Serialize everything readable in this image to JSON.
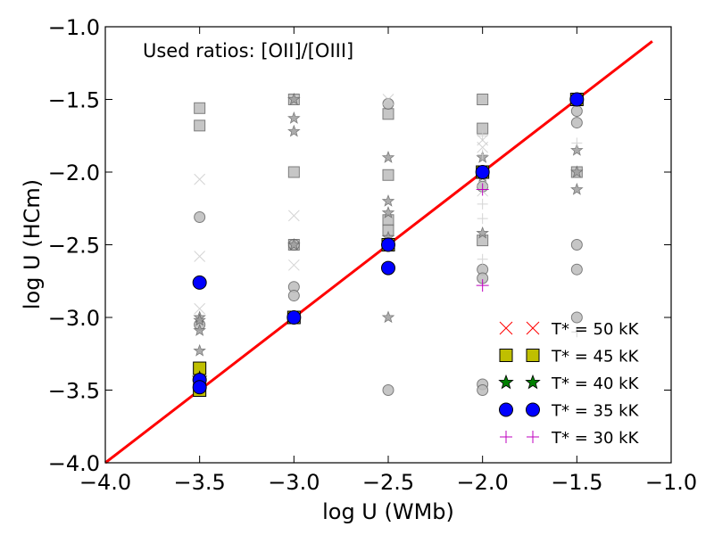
{
  "chart_data": {
    "type": "scatter",
    "xlabel": "log U (WMb)",
    "ylabel": "log U (HCm)",
    "xlim": [
      -4.0,
      -1.0
    ],
    "ylim": [
      -4.0,
      -1.0
    ],
    "xticks": [
      "−4.0",
      "−3.5",
      "−3.0",
      "−2.5",
      "−2.0",
      "−1.5",
      "−1.0"
    ],
    "yticks": [
      "−1.0",
      "−1.5",
      "−2.0",
      "−2.5",
      "−3.0",
      "−3.5",
      "−4.0"
    ],
    "annotation": "Used ratios: [OII]/[OIII]",
    "identity_line": {
      "x": [
        -4.0,
        -1.1
      ],
      "y": [
        -4.0,
        -1.1
      ],
      "color": "#ff0000"
    },
    "background_points": [
      {
        "marker": "square",
        "color": "#bdbdbd",
        "points": [
          [
            -3.5,
            -1.56
          ],
          [
            -3.5,
            -1.68
          ],
          [
            -3.0,
            -1.5
          ],
          [
            -3.0,
            -2.0
          ],
          [
            -3.0,
            -2.5
          ],
          [
            -2.5,
            -1.6
          ],
          [
            -2.5,
            -2.02
          ],
          [
            -2.5,
            -2.33
          ],
          [
            -2.5,
            -2.4
          ],
          [
            -2.0,
            -1.5
          ],
          [
            -2.0,
            -1.7
          ],
          [
            -2.0,
            -2.0
          ],
          [
            -2.0,
            -2.47
          ],
          [
            -1.5,
            -2.0
          ],
          [
            -3.5,
            -3.5
          ]
        ]
      },
      {
        "marker": "circle",
        "color": "#bdbdbd",
        "points": [
          [
            -3.5,
            -2.31
          ],
          [
            -3.5,
            -3.05
          ],
          [
            -3.0,
            -2.5
          ],
          [
            -3.0,
            -2.79
          ],
          [
            -3.0,
            -2.85
          ],
          [
            -2.5,
            -1.53
          ],
          [
            -2.5,
            -3.5
          ],
          [
            -2.0,
            -2.1
          ],
          [
            -2.0,
            -2.67
          ],
          [
            -2.0,
            -2.73
          ],
          [
            -2.0,
            -3.46
          ],
          [
            -2.0,
            -3.5
          ],
          [
            -1.5,
            -1.58
          ],
          [
            -1.5,
            -1.66
          ],
          [
            -1.5,
            -2.5
          ],
          [
            -1.5,
            -2.67
          ],
          [
            -1.5,
            -3.0
          ]
        ]
      },
      {
        "marker": "star",
        "color": "#9e9e9e",
        "points": [
          [
            -3.5,
            -3.0
          ],
          [
            -3.5,
            -3.02
          ],
          [
            -3.5,
            -3.09
          ],
          [
            -3.5,
            -3.23
          ],
          [
            -3.5,
            -3.4
          ],
          [
            -3.0,
            -1.5
          ],
          [
            -3.0,
            -1.63
          ],
          [
            -3.0,
            -1.72
          ],
          [
            -3.0,
            -2.5
          ],
          [
            -2.5,
            -1.9
          ],
          [
            -2.5,
            -2.2
          ],
          [
            -2.5,
            -2.28
          ],
          [
            -2.5,
            -2.45
          ],
          [
            -2.5,
            -3.0
          ],
          [
            -2.0,
            -1.9
          ],
          [
            -2.0,
            -2.03
          ],
          [
            -2.0,
            -2.42
          ],
          [
            -1.5,
            -1.85
          ],
          [
            -1.5,
            -2.0
          ],
          [
            -1.5,
            -2.12
          ]
        ]
      },
      {
        "marker": "x",
        "color": "#cccccc",
        "points": [
          [
            -3.5,
            -2.05
          ],
          [
            -3.5,
            -2.58
          ],
          [
            -3.5,
            -2.94
          ],
          [
            -3.0,
            -2.3
          ],
          [
            -3.0,
            -2.64
          ],
          [
            -2.5,
            -1.5
          ],
          [
            -2.0,
            -1.78
          ],
          [
            -2.0,
            -1.83
          ],
          [
            -2.0,
            -2.13
          ],
          [
            -1.5,
            -1.5
          ]
        ]
      },
      {
        "marker": "plus",
        "color": "#cccccc",
        "points": [
          [
            -2.0,
            -1.75
          ],
          [
            -2.0,
            -1.88
          ],
          [
            -2.0,
            -2.22
          ],
          [
            -2.0,
            -2.32
          ],
          [
            -2.0,
            -2.6
          ],
          [
            -1.5,
            -1.8
          ],
          [
            -1.5,
            -3.1
          ]
        ]
      }
    ],
    "series": [
      {
        "name": "T* = 50 kK",
        "marker": "x",
        "color": "#ff0000",
        "points": [
          [
            -1.5,
            -1.5
          ]
        ]
      },
      {
        "name": "T* = 45 kK",
        "marker": "square",
        "color": "#bfbf00",
        "points": [
          [
            -3.5,
            -3.35
          ],
          [
            -3.5,
            -3.5
          ],
          [
            -3.0,
            -3.0
          ],
          [
            -2.5,
            -2.5
          ],
          [
            -2.0,
            -2.0
          ],
          [
            -1.5,
            -1.5
          ]
        ]
      },
      {
        "name": "T* = 40 kK",
        "marker": "star",
        "color": "#008000",
        "points": [
          [
            -3.5,
            -3.42
          ]
        ]
      },
      {
        "name": "T* = 35 kK",
        "marker": "circle",
        "color": "#0000ff",
        "points": [
          [
            -3.5,
            -2.76
          ],
          [
            -3.5,
            -3.43
          ],
          [
            -3.5,
            -3.48
          ],
          [
            -3.0,
            -3.0
          ],
          [
            -2.5,
            -2.5
          ],
          [
            -2.5,
            -2.66
          ],
          [
            -2.0,
            -2.0
          ],
          [
            -1.5,
            -1.5
          ]
        ]
      },
      {
        "name": "T* = 30 kK",
        "marker": "plus",
        "color": "#bf00bf",
        "points": [
          [
            -2.0,
            -2.12
          ],
          [
            -2.0,
            -2.78
          ]
        ]
      }
    ],
    "legend_position": "lower-right"
  }
}
